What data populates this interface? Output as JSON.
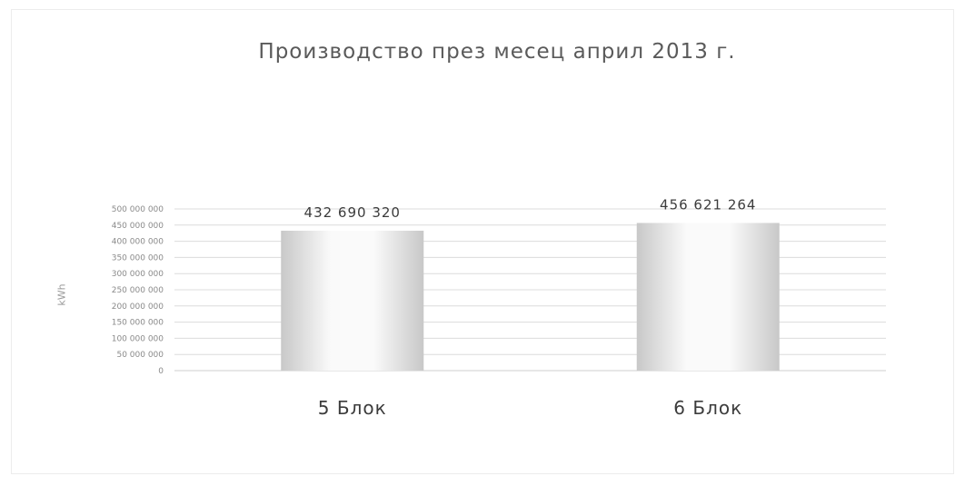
{
  "chart_data": {
    "type": "bar",
    "title": "Производство през месец април 2013 г.",
    "ylabel": "kWh",
    "xlabel": "",
    "categories": [
      "5 Блок",
      "6 Блок"
    ],
    "values": [
      432690320,
      456621264
    ],
    "data_labels": [
      "432 690 320",
      "456 621 264"
    ],
    "ylim": [
      0,
      500000000
    ],
    "yticks": [
      0,
      50000000,
      100000000,
      150000000,
      200000000,
      250000000,
      300000000,
      350000000,
      400000000,
      450000000,
      500000000
    ],
    "ytick_labels": [
      "0",
      "50 000 000",
      "100 000 000",
      "150 000 000",
      "200 000 000",
      "250 000 000",
      "300 000 000",
      "350 000 000",
      "400 000 000",
      "450 000 000",
      "500 000 000"
    ],
    "grid": true,
    "legend": "none",
    "colors": {
      "bar_edge": "#c8c8c8",
      "bar_center": "#fafafa",
      "grid": "#dcdcdc"
    }
  }
}
